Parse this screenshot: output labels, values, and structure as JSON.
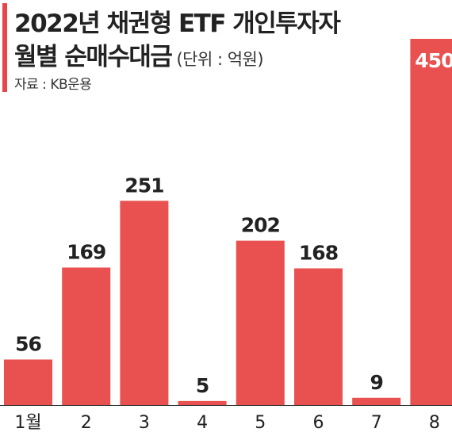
{
  "header": {
    "title_line1": "2022년 채권형 ETF 개인투자자",
    "title_line2": "월별 순매수대금",
    "unit": "(단위 : 억원)",
    "source": "자료 : KB운용"
  },
  "colors": {
    "bar": "#e8514f",
    "accent": "#e8474a",
    "text": "#222222",
    "axis": "#333333"
  },
  "chart_data": {
    "type": "bar",
    "categories": [
      "1월",
      "2",
      "3",
      "4",
      "5",
      "6",
      "7",
      "8"
    ],
    "values": [
      56,
      169,
      251,
      5,
      202,
      168,
      9,
      450
    ],
    "ylim": [
      0,
      450
    ],
    "xlabel": "",
    "ylabel": "",
    "grid": false,
    "data_labels": true
  }
}
